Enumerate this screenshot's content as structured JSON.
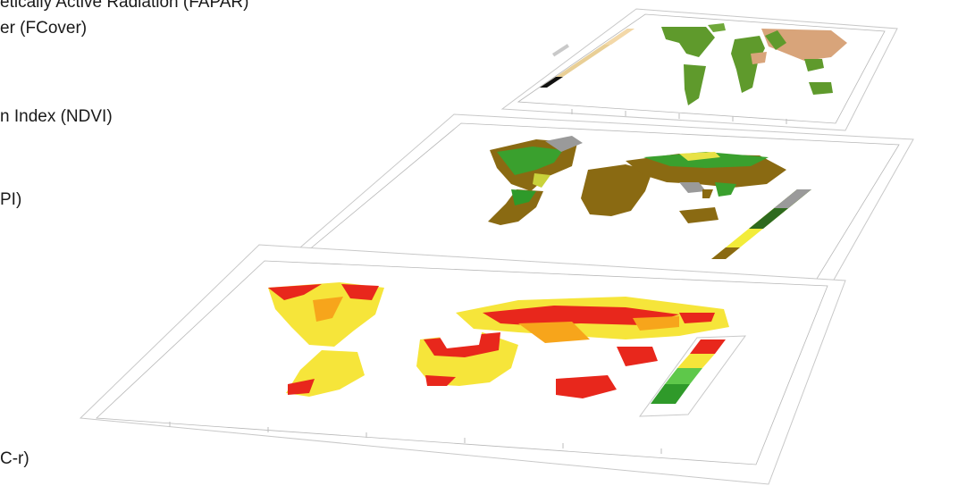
{
  "labels": [
    "etically Active Radiation (FAPAR)",
    "er (FCover)",
    "n Index (NDVI)",
    "PI)",
    "C-r)"
  ],
  "layers": [
    {
      "name": "top-map-layer",
      "colors": [
        "#5f9a2c",
        "#d8a47a",
        "#e9d6b0"
      ]
    },
    {
      "name": "middle-map-layer",
      "colors": [
        "#8a6a12",
        "#2f9a2a",
        "#f2ec3a",
        "#9a9a9a"
      ]
    },
    {
      "name": "bottom-map-layer",
      "colors": [
        "#e8271c",
        "#f6e53a",
        "#f7a51b",
        "#2f9a2a"
      ]
    }
  ]
}
